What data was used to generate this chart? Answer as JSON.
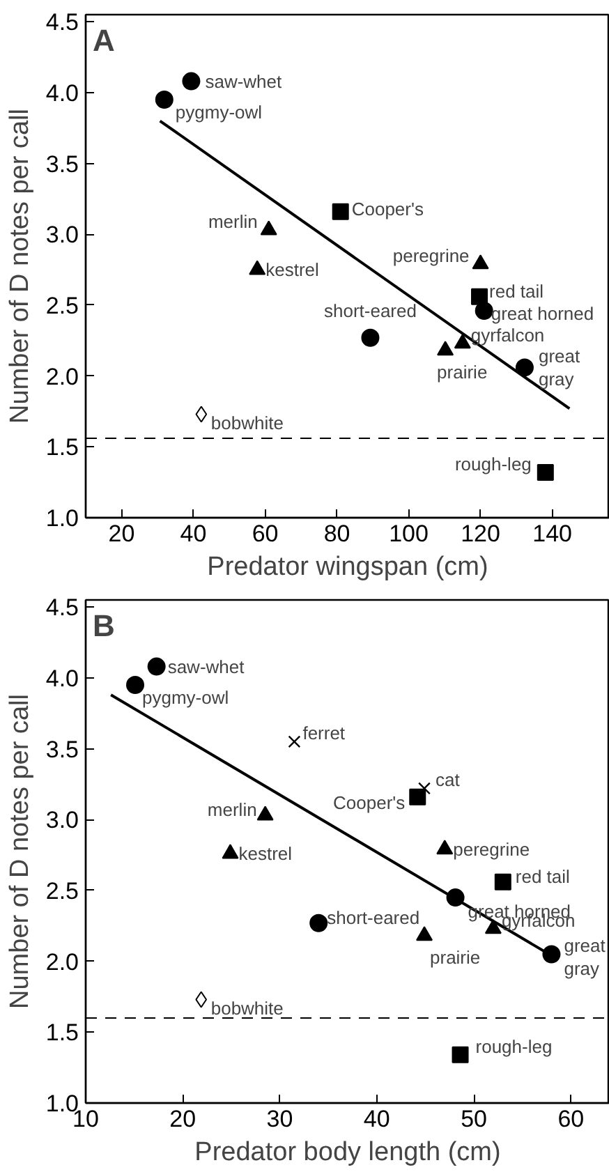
{
  "chart_data": [
    {
      "type": "scatter",
      "title": "A",
      "xlabel": "Predator wingspan (cm)",
      "ylabel": "Number of D notes per call",
      "xlim": [
        10,
        156
      ],
      "xticks": [
        20,
        40,
        60,
        80,
        100,
        120,
        140
      ],
      "ylim": [
        1.0,
        4.55
      ],
      "yticks": [
        {
          "value": 1.0,
          "label": "1.0"
        },
        1.5,
        {
          "value": 2.0,
          "label": "2.0"
        },
        2.5,
        {
          "value": 3.0,
          "label": "3.0"
        },
        3.5,
        {
          "value": 4.0,
          "label": "4.0"
        },
        4.5
      ],
      "grid": false,
      "series": [
        {
          "marker": "circle",
          "color": "#000000",
          "x": [
            39.4,
            31.9,
            89.3,
            121,
            132.3
          ],
          "values": [
            4.08,
            3.95,
            2.27,
            2.46,
            2.06
          ]
        },
        {
          "marker": "triangle",
          "color": "#000000",
          "x": [
            61,
            57.8,
            120,
            110.2,
            115
          ],
          "values": [
            3.03,
            2.75,
            2.79,
            2.18,
            2.23
          ]
        },
        {
          "marker": "square",
          "color": "#000000",
          "x": [
            81,
            119.7,
            138.1
          ],
          "values": [
            3.16,
            2.56,
            1.32
          ]
        },
        {
          "marker": "diamond",
          "color": "#ffffff",
          "x": [
            42.2
          ],
          "values": [
            1.73
          ]
        },
        {
          "type": "line",
          "marker": "none",
          "color": "#000000",
          "x": [
            30.7,
            144.8
          ],
          "values": [
            3.8,
            1.77
          ]
        }
      ],
      "ref_lines": [
        {
          "axis": "y",
          "value": 1.56,
          "line_style": "dashed",
          "color": "#000000"
        }
      ],
      "annotations": [
        {
          "text": "saw-whet",
          "x": 39.4,
          "y": 4.08
        },
        {
          "text": "pygmy-owl",
          "x": 31.9,
          "y": 3.95
        },
        {
          "text": "Cooper's",
          "x": 81,
          "y": 3.16
        },
        {
          "text": "merlin",
          "x": 61,
          "y": 3.03
        },
        {
          "text": "kestrel",
          "x": 57.8,
          "y": 2.75
        },
        {
          "text": "peregrine",
          "x": 120,
          "y": 2.79
        },
        {
          "text": "red tail",
          "x": 119.7,
          "y": 2.56
        },
        {
          "text": "great horned",
          "x": 121,
          "y": 2.46
        },
        {
          "text": "short-eared",
          "x": 89.3,
          "y": 2.27
        },
        {
          "text": "gyrfalcon",
          "x": 115,
          "y": 2.23
        },
        {
          "text": "prairie",
          "x": 110.2,
          "y": 2.18
        },
        {
          "text": "great\ngray",
          "x": 132.3,
          "y": 2.06
        },
        {
          "text": "bobwhite",
          "x": 42.2,
          "y": 1.73
        },
        {
          "text": "rough-leg",
          "x": 138.1,
          "y": 1.32
        }
      ]
    },
    {
      "type": "scatter",
      "title": "B",
      "xlabel": "Predator body length (cm)",
      "ylabel": "Number of D notes per call",
      "xlim": [
        10,
        64
      ],
      "xticks": [
        10,
        20,
        30,
        40,
        50,
        60
      ],
      "ylim": [
        1.0,
        4.55
      ],
      "yticks": [
        {
          "value": 1.0,
          "label": "1.0"
        },
        1.5,
        {
          "value": 2.0,
          "label": "2.0"
        },
        2.5,
        {
          "value": 3.0,
          "label": "3.0"
        },
        3.5,
        {
          "value": 4.0,
          "label": "4.0"
        },
        4.5
      ],
      "grid": false,
      "series": [
        {
          "marker": "circle",
          "color": "#000000",
          "x": [
            17.3,
            15.1,
            34,
            48.1,
            58
          ],
          "values": [
            4.08,
            3.95,
            2.27,
            2.45,
            2.05
          ]
        },
        {
          "marker": "triangle",
          "color": "#000000",
          "x": [
            28.5,
            24.9,
            47,
            44.9,
            52
          ],
          "values": [
            3.03,
            2.76,
            2.79,
            2.18,
            2.23
          ]
        },
        {
          "marker": "square",
          "color": "#000000",
          "x": [
            44.2,
            53,
            48.6
          ],
          "values": [
            3.16,
            2.56,
            1.34
          ]
        },
        {
          "marker": "diamond",
          "color": "#ffffff",
          "x": [
            21.9
          ],
          "values": [
            1.73
          ]
        },
        {
          "marker": "cross",
          "color": "#000000",
          "x": [
            31.5,
            44.9
          ],
          "values": [
            3.55,
            3.22
          ]
        },
        {
          "type": "line",
          "marker": "none",
          "color": "#000000",
          "x": [
            12.6,
            58.5
          ],
          "values": [
            3.88,
            2.02
          ]
        }
      ],
      "ref_lines": [
        {
          "axis": "y",
          "value": 1.6,
          "line_style": "dashed",
          "color": "#000000"
        }
      ],
      "annotations": [
        {
          "text": "saw-whet",
          "x": 17.3,
          "y": 4.08
        },
        {
          "text": "pygmy-owl",
          "x": 15.1,
          "y": 3.95
        },
        {
          "text": "ferret",
          "x": 31.5,
          "y": 3.55
        },
        {
          "text": "cat",
          "x": 44.9,
          "y": 3.22
        },
        {
          "text": "Cooper's",
          "x": 44.2,
          "y": 3.16
        },
        {
          "text": "merlin",
          "x": 28.5,
          "y": 3.03
        },
        {
          "text": "kestrel",
          "x": 24.9,
          "y": 2.76
        },
        {
          "text": "peregrine",
          "x": 47,
          "y": 2.79
        },
        {
          "text": "red tail",
          "x": 53,
          "y": 2.56
        },
        {
          "text": "great horned",
          "x": 48.1,
          "y": 2.45
        },
        {
          "text": "short-eared",
          "x": 34,
          "y": 2.27
        },
        {
          "text": "gyrfalcon",
          "x": 52,
          "y": 2.23
        },
        {
          "text": "prairie",
          "x": 44.9,
          "y": 2.18
        },
        {
          "text": "great\ngray",
          "x": 58,
          "y": 2.05
        },
        {
          "text": "bobwhite",
          "x": 21.9,
          "y": 1.73
        },
        {
          "text": "rough-leg",
          "x": 48.6,
          "y": 1.34
        }
      ]
    }
  ]
}
